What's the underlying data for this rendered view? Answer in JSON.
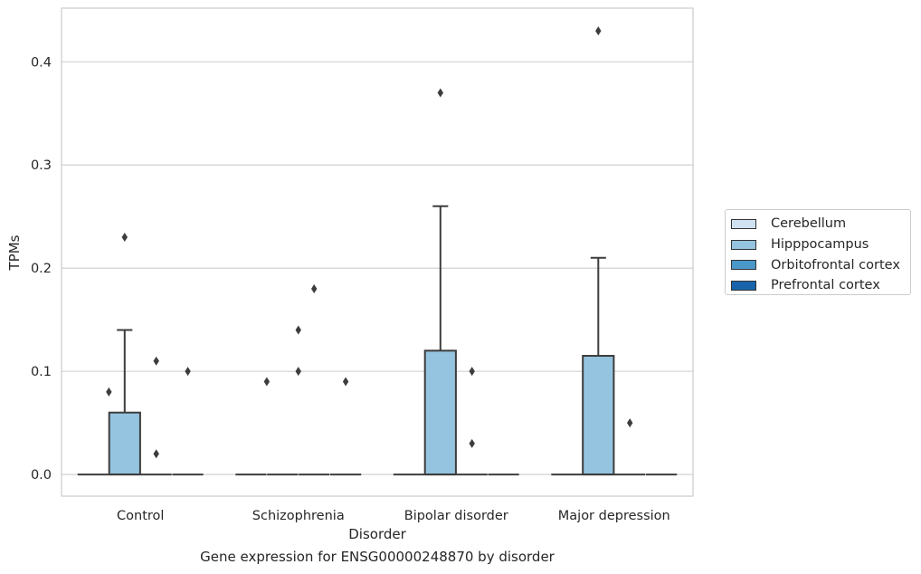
{
  "chart_data": {
    "type": "box",
    "caption": "Gene expression for ENSG00000248870 by disorder",
    "xlabel": "Disorder",
    "ylabel": "TPMs",
    "ylim": [
      -0.021,
      0.452
    ],
    "yticks": [
      0.0,
      0.1,
      0.2,
      0.3,
      0.4
    ],
    "ytick_labels": [
      "0.0",
      "0.1",
      "0.2",
      "0.3",
      "0.4"
    ],
    "grid": true,
    "legend_position": "right",
    "categories": [
      "Control",
      "Schizophrenia",
      "Bipolar disorder",
      "Major depression"
    ],
    "series": [
      {
        "name": "Cerebellum",
        "color": "#d0e1f2",
        "boxes": [
          {
            "q1": 0,
            "median": 0,
            "q3": 0,
            "whisker_low": 0,
            "whisker_high": 0,
            "outliers": []
          },
          {
            "q1": 0,
            "median": 0,
            "q3": 0,
            "whisker_low": 0,
            "whisker_high": 0,
            "outliers": []
          },
          {
            "q1": 0,
            "median": 0,
            "q3": 0,
            "whisker_low": 0,
            "whisker_high": 0,
            "outliers": []
          },
          {
            "q1": 0,
            "median": 0,
            "q3": 0,
            "whisker_low": 0,
            "whisker_high": 0,
            "outliers": []
          }
        ]
      },
      {
        "name": "Hipppocampus",
        "color": "#94c4df",
        "boxes": [
          {
            "q1": 0,
            "median": 0,
            "q3": 0.06,
            "whisker_low": 0,
            "whisker_high": 0.14,
            "outliers": [
              0.23
            ]
          },
          {
            "q1": 0,
            "median": 0,
            "q3": 0,
            "whisker_low": 0,
            "whisker_high": 0,
            "outliers": []
          },
          {
            "q1": 0,
            "median": 0,
            "q3": 0.12,
            "whisker_low": 0,
            "whisker_high": 0.26,
            "outliers": [
              0.37
            ]
          },
          {
            "q1": 0,
            "median": 0,
            "q3": 0.115,
            "whisker_low": 0,
            "whisker_high": 0.21,
            "outliers": [
              0.43
            ]
          }
        ]
      },
      {
        "name": "Orbitofrontal cortex",
        "color": "#4a98c9",
        "boxes": [
          {
            "q1": 0,
            "median": 0,
            "q3": 0,
            "whisker_low": 0,
            "whisker_high": 0,
            "outliers": [
              0.11,
              0.02
            ]
          },
          {
            "q1": 0,
            "median": 0,
            "q3": 0,
            "whisker_low": 0,
            "whisker_high": 0,
            "outliers": [
              0.18
            ]
          },
          {
            "q1": 0,
            "median": 0,
            "q3": 0,
            "whisker_low": 0,
            "whisker_high": 0,
            "outliers": [
              0.1,
              0.03
            ]
          },
          {
            "q1": 0,
            "median": 0,
            "q3": 0,
            "whisker_low": 0,
            "whisker_high": 0,
            "outliers": [
              0.05
            ]
          }
        ]
      },
      {
        "name": "Prefrontal cortex",
        "color": "#1764ab",
        "boxes": [
          {
            "q1": 0,
            "median": 0,
            "q3": 0,
            "whisker_low": 0,
            "whisker_high": 0,
            "outliers": [
              0.1
            ]
          },
          {
            "q1": 0,
            "median": 0,
            "q3": 0,
            "whisker_low": 0,
            "whisker_high": 0,
            "outliers": [
              0.09
            ]
          },
          {
            "q1": 0,
            "median": 0,
            "q3": 0,
            "whisker_low": 0,
            "whisker_high": 0,
            "outliers": []
          },
          {
            "q1": 0,
            "median": 0,
            "q3": 0,
            "whisker_low": 0,
            "whisker_high": 0,
            "outliers": []
          }
        ]
      }
    ],
    "extra_outliers": [
      {
        "category": 0,
        "between_series": [
          0,
          1
        ],
        "values": [
          0.08
        ]
      },
      {
        "category": 1,
        "between_series": [
          1,
          2
        ],
        "values": [
          0.14,
          0.1
        ]
      },
      {
        "category": 1,
        "between_series": [
          0,
          1
        ],
        "values": [
          0.09
        ]
      }
    ]
  }
}
